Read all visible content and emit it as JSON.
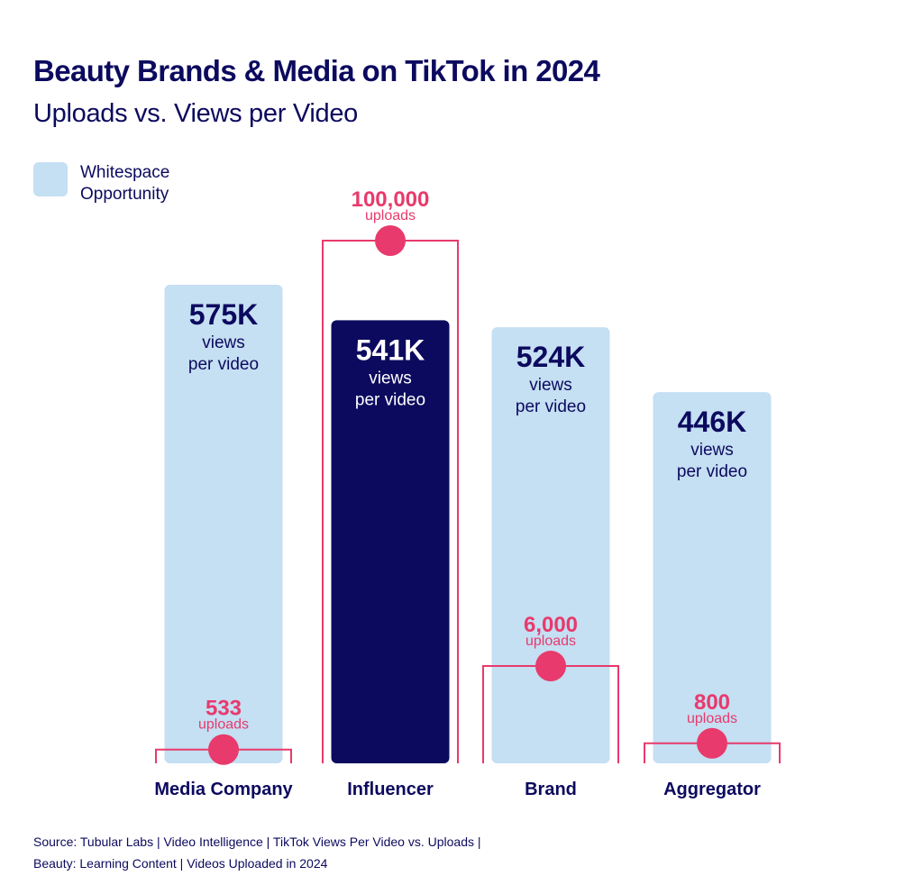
{
  "title": "Beauty Brands & Media on TikTok in 2024",
  "subtitle": "Uploads vs. Views per Video",
  "legend": {
    "label": "Whitespace Opportunity",
    "color": "#c5dff3"
  },
  "colors": {
    "views_bar": "#c5dff3",
    "highlight_bar": "#0c0a5e",
    "uploads": "#e83a6c",
    "text": "#0c0a5e"
  },
  "views_unit": "views",
  "views_unit_line2": "per video",
  "uploads_unit": "uploads",
  "source_line1": "Source: Tubular Labs | Video Intelligence | TikTok Views Per Video vs. Uploads |",
  "source_line2": "Beauty: Learning Content | Videos Uploaded in 2024",
  "chart_data": {
    "type": "bar",
    "title": "Beauty Brands & Media on TikTok in 2024",
    "subtitle": "Uploads vs. Views per Video",
    "categories": [
      "Media Company",
      "Influencer",
      "Brand",
      "Aggregator"
    ],
    "series": [
      {
        "name": "Views per video",
        "values": [
          575000,
          541000,
          524000,
          446000
        ],
        "labels": [
          "575K",
          "541K",
          "524K",
          "446K"
        ]
      },
      {
        "name": "Uploads",
        "values": [
          533,
          100000,
          6000,
          800
        ],
        "labels": [
          "533",
          "100,000",
          "6,000",
          "800"
        ]
      }
    ],
    "highlight_category": "Influencer",
    "ylim": [
      0,
      575000
    ]
  }
}
